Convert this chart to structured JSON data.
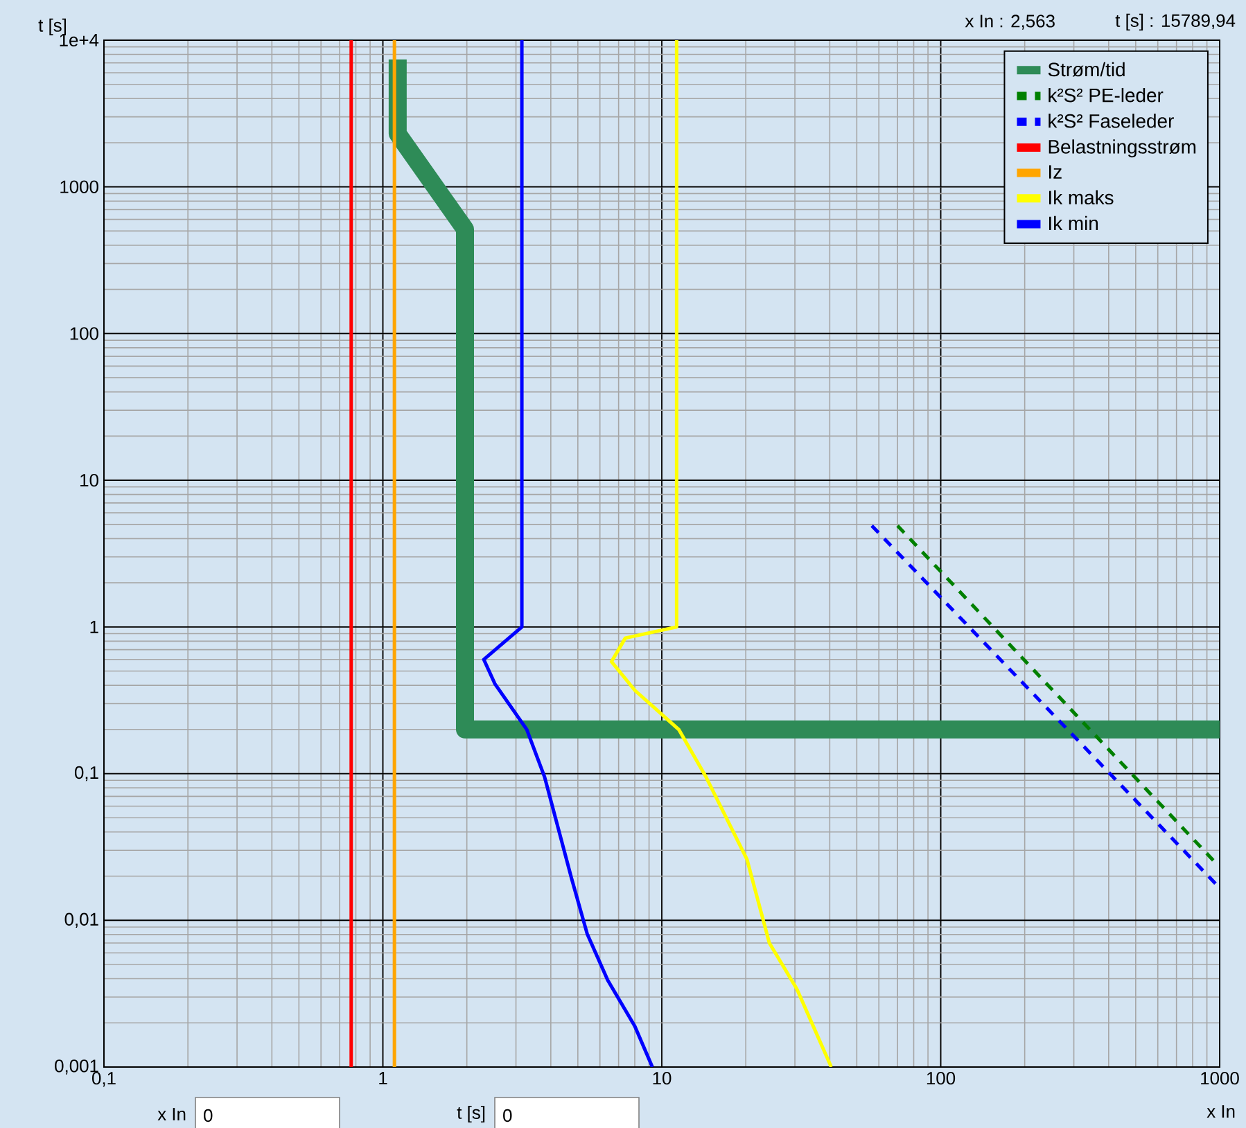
{
  "chart_data": {
    "type": "line",
    "xlabel": "x In",
    "ylabel": "t [s]",
    "log": "xy",
    "grid": true,
    "legend": "top right",
    "xlim": [
      0.1,
      1000
    ],
    "ylim": [
      0.001,
      10000
    ],
    "xticks": [
      {
        "value": 0.1,
        "label": "0,1"
      },
      1,
      10,
      100,
      1000
    ],
    "yticks": [
      {
        "value": 0.001,
        "label": "0,001"
      },
      {
        "value": 0.01,
        "label": "0,01"
      },
      {
        "value": 0.1,
        "label": "0,1"
      },
      1,
      10,
      100,
      1000,
      {
        "value": 10000,
        "label": "1e+4"
      }
    ],
    "annotations": [
      "x In : 2,563",
      "t [s] : 15789,94",
      "x In",
      "0",
      "t [s]",
      "0"
    ],
    "series": [
      {
        "name": "Strøm/tid",
        "color": "#2e8b57",
        "x": [
          1.13,
          1.13,
          1.97,
          1.97,
          1000
        ],
        "values": [
          7400,
          2300,
          515,
          0.2,
          0.2
        ]
      },
      {
        "name": "k²S² PE-leder",
        "color": "#008000",
        "line_style": "dashed",
        "x": [
          70,
          980
        ],
        "values": [
          4.9,
          0.024
        ]
      },
      {
        "name": "k²S² Faseleder",
        "color": "#0000ff",
        "line_style": "dashed",
        "x": [
          56.6,
          980
        ],
        "values": [
          4.9,
          0.0173
        ]
      },
      {
        "name": "Belastningsstrøm",
        "color": "#ff0000",
        "x": [
          0.77,
          0.77
        ],
        "values": [
          0.001,
          10000
        ]
      },
      {
        "name": "Iz",
        "color": "#ffa500",
        "x": [
          1.1,
          1.1
        ],
        "values": [
          0.001,
          10000
        ]
      },
      {
        "name": "Ik maks",
        "color": "#ffff00",
        "x": [
          11.3,
          11.3,
          7.4,
          6.6,
          8.0,
          11.5,
          14.4,
          20.2,
          24.3,
          30.5,
          40.5
        ],
        "values": [
          10000,
          1,
          0.84,
          0.58,
          0.37,
          0.2,
          0.095,
          0.026,
          0.007,
          0.0034,
          0.001
        ]
      },
      {
        "name": "Ik min",
        "color": "#0000ff",
        "x": [
          3.15,
          3.15,
          2.3,
          2.52,
          3.28,
          3.8,
          4.74,
          5.4,
          6.4,
          8.0,
          9.25
        ],
        "values": [
          10000,
          1,
          0.6,
          0.41,
          0.2,
          0.095,
          0.0195,
          0.0081,
          0.0039,
          0.0019,
          0.001
        ]
      }
    ]
  }
}
